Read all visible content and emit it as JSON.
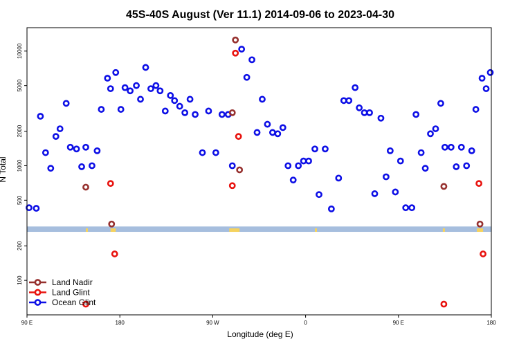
{
  "chart_data": {
    "type": "scatter",
    "title": "45S-40S August (Ver 11.1)   2014-09-06 to 2023-04-30",
    "xlabel": "Longitude (deg E)",
    "ylabel": "N Total",
    "x_ticks": [
      {
        "value": 90,
        "label": "90 E"
      },
      {
        "value": 180,
        "label": "180"
      },
      {
        "value": 270,
        "label": "90 W"
      },
      {
        "value": 360,
        "label": "0"
      },
      {
        "value": 450,
        "label": "90 E"
      },
      {
        "value": 540,
        "label": "180"
      }
    ],
    "y_ticks": [
      {
        "value": 100,
        "label": "100"
      },
      {
        "value": 200,
        "label": "200"
      },
      {
        "value": 500,
        "label": "500"
      },
      {
        "value": 1000,
        "label": "1000"
      },
      {
        "value": 2000,
        "label": "2000"
      },
      {
        "value": 5000,
        "label": "5000"
      },
      {
        "value": 10000,
        "label": "10000"
      }
    ],
    "x_range": [
      90,
      540
    ],
    "y_scale": "log",
    "y_range": [
      50,
      16000
    ],
    "legend_position": "bottom-left",
    "colors": {
      "land_nadir": "#96302e",
      "land_glint": "#e8130f",
      "ocean_glint": "#0d0fe6",
      "land_band": "#a6bede",
      "land_band_highlight": "#f5d25e"
    },
    "land_band": {
      "y_low": 265,
      "y_high": 295,
      "highlight_segments": [
        [
          147,
          149
        ],
        [
          171,
          176
        ],
        [
          286,
          296
        ],
        [
          369,
          371
        ],
        [
          493,
          495
        ],
        [
          526,
          532
        ]
      ]
    },
    "series": [
      {
        "name": "Land Nadir",
        "color_key": "land_nadir",
        "points": [
          [
            147,
            650
          ],
          [
            172,
            310
          ],
          [
            289,
            2900
          ],
          [
            292,
            12500
          ],
          [
            296,
            920
          ],
          [
            494,
            660
          ],
          [
            529,
            310
          ]
        ]
      },
      {
        "name": "Land Glint",
        "color_key": "land_glint",
        "points": [
          [
            147,
            62
          ],
          [
            171,
            700
          ],
          [
            175,
            170
          ],
          [
            289,
            670
          ],
          [
            292,
            9600
          ],
          [
            295,
            1800
          ],
          [
            494,
            62
          ],
          [
            528,
            700
          ],
          [
            532,
            170
          ]
        ]
      },
      {
        "name": "Ocean Glint",
        "color_key": "ocean_glint",
        "points": [
          [
            92,
            430
          ],
          [
            99,
            425
          ],
          [
            103,
            2700
          ],
          [
            108,
            1300
          ],
          [
            113,
            950
          ],
          [
            118,
            1800
          ],
          [
            122,
            2100
          ],
          [
            128,
            3500
          ],
          [
            132,
            1450
          ],
          [
            138,
            1400
          ],
          [
            143,
            980
          ],
          [
            147,
            1450
          ],
          [
            153,
            1000
          ],
          [
            158,
            1350
          ],
          [
            162,
            3100
          ],
          [
            168,
            5800
          ],
          [
            171,
            4700
          ],
          [
            176,
            6500
          ],
          [
            181,
            3100
          ],
          [
            185,
            4800
          ],
          [
            190,
            4500
          ],
          [
            196,
            5000
          ],
          [
            200,
            3800
          ],
          [
            205,
            7200
          ],
          [
            210,
            4700
          ],
          [
            215,
            5000
          ],
          [
            219,
            4500
          ],
          [
            224,
            3000
          ],
          [
            229,
            4100
          ],
          [
            233,
            3700
          ],
          [
            238,
            3300
          ],
          [
            243,
            2900
          ],
          [
            248,
            3800
          ],
          [
            253,
            2800
          ],
          [
            260,
            1300
          ],
          [
            266,
            3000
          ],
          [
            273,
            1300
          ],
          [
            279,
            2800
          ],
          [
            285,
            2800
          ],
          [
            289,
            1000
          ],
          [
            298,
            10400
          ],
          [
            303,
            5900
          ],
          [
            308,
            8400
          ],
          [
            313,
            1950
          ],
          [
            318,
            3800
          ],
          [
            323,
            2300
          ],
          [
            328,
            1950
          ],
          [
            333,
            1900
          ],
          [
            338,
            2150
          ],
          [
            343,
            1000
          ],
          [
            348,
            750
          ],
          [
            353,
            1000
          ],
          [
            358,
            1100
          ],
          [
            363,
            1100
          ],
          [
            369,
            1400
          ],
          [
            373,
            560
          ],
          [
            379,
            1400
          ],
          [
            385,
            420
          ],
          [
            392,
            780
          ],
          [
            397,
            3700
          ],
          [
            402,
            3700
          ],
          [
            408,
            4800
          ],
          [
            412,
            3200
          ],
          [
            417,
            2900
          ],
          [
            422,
            2900
          ],
          [
            427,
            570
          ],
          [
            433,
            2600
          ],
          [
            438,
            800
          ],
          [
            442,
            1350
          ],
          [
            447,
            590
          ],
          [
            452,
            1100
          ],
          [
            457,
            430
          ],
          [
            463,
            430
          ],
          [
            467,
            2800
          ],
          [
            472,
            1300
          ],
          [
            476,
            950
          ],
          [
            481,
            1900
          ],
          [
            486,
            2100
          ],
          [
            491,
            3500
          ],
          [
            495,
            1450
          ],
          [
            501,
            1450
          ],
          [
            506,
            980
          ],
          [
            511,
            1450
          ],
          [
            516,
            1000
          ],
          [
            521,
            1350
          ],
          [
            525,
            3100
          ],
          [
            531,
            5800
          ],
          [
            535,
            4700
          ],
          [
            539,
            6500
          ]
        ]
      }
    ]
  }
}
